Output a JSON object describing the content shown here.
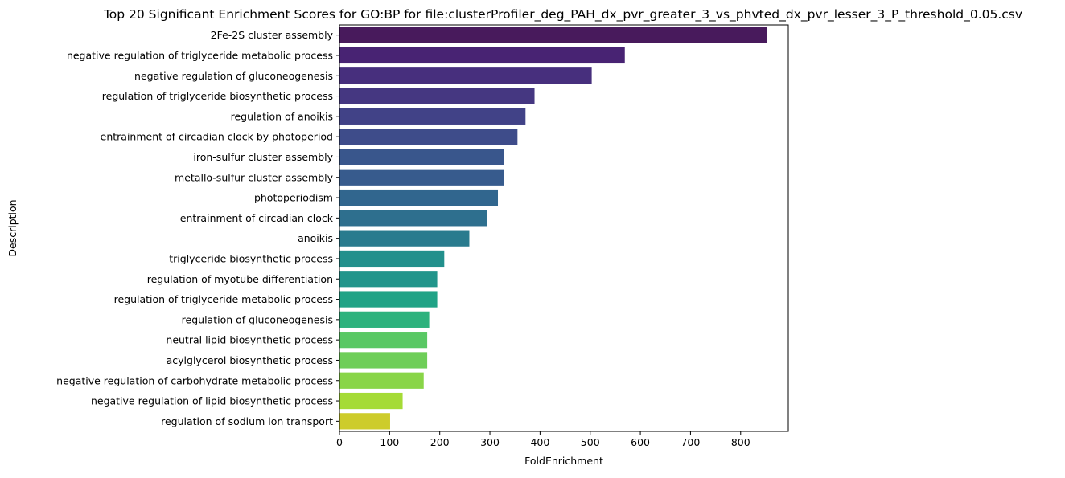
{
  "chart_data": {
    "type": "bar",
    "orientation": "horizontal",
    "title": "Top 20 Significant Enrichment Scores for GO:BP for file:clusterProfiler_deg_PAH_dx_pvr_greater_3_vs_phvted_dx_pvr_lesser_3_P_threshold_0.05.csv",
    "xlabel": "FoldEnrichment",
    "ylabel": "Description",
    "xlim": [
      0,
      895
    ],
    "xticks": [
      0,
      100,
      200,
      300,
      400,
      500,
      600,
      700,
      800
    ],
    "grid": false,
    "legend": "none",
    "palette": "viridis",
    "categories": [
      "2Fe-2S cluster assembly",
      "negative regulation of triglyceride metabolic process",
      "negative regulation of gluconeogenesis",
      "regulation of triglyceride biosynthetic process",
      "regulation of anoikis",
      "entrainment of circadian clock by photoperiod",
      "iron-sulfur cluster assembly",
      "metallo-sulfur cluster assembly",
      "photoperiodism",
      "entrainment of circadian clock",
      "anoikis",
      "triglyceride biosynthetic process",
      "regulation of myotube differentiation",
      "regulation of triglyceride metabolic process",
      "regulation of gluconeogenesis",
      "neutral lipid biosynthetic process",
      "acylglycerol biosynthetic process",
      "negative regulation of carbohydrate metabolic process",
      "negative regulation of lipid biosynthetic process",
      "regulation of sodium ion transport"
    ],
    "values": [
      853,
      569,
      503,
      389,
      371,
      355,
      328,
      328,
      316,
      294,
      259,
      209,
      195,
      195,
      179,
      175,
      175,
      168,
      126,
      101
    ],
    "colors": [
      "#481a5c",
      "#482373",
      "#472f7d",
      "#453781",
      "#414287",
      "#3e4c8a",
      "#39568c",
      "#375b8d",
      "#31668e",
      "#2e6f8e",
      "#297b8e",
      "#22908c",
      "#21958b",
      "#20a386",
      "#2db27d",
      "#59c864",
      "#6ece58",
      "#89d548",
      "#a5db36",
      "#cdcc2b"
    ]
  }
}
